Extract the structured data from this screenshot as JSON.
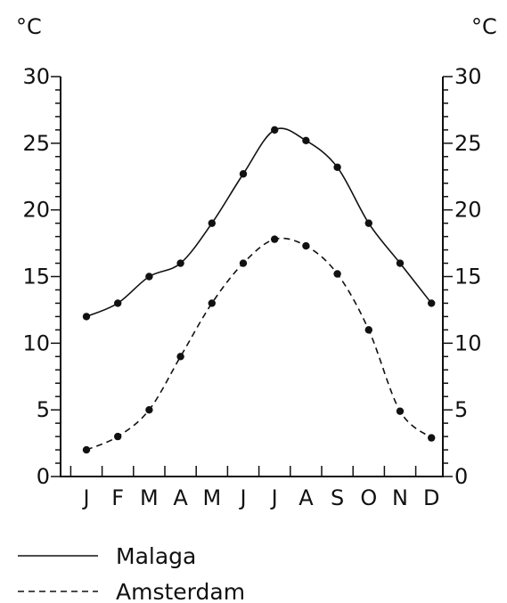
{
  "chart_data": {
    "type": "line",
    "title": "",
    "y_unit_left": "°C",
    "y_unit_right": "°C",
    "categories": [
      "J",
      "F",
      "M",
      "A",
      "M",
      "J",
      "J",
      "A",
      "S",
      "O",
      "N",
      "D"
    ],
    "ylim": [
      0,
      30
    ],
    "y_ticks": [
      "0",
      "5",
      "10",
      "15",
      "20",
      "25",
      "30"
    ],
    "dual_y_axis": true,
    "grid": false,
    "series": [
      {
        "name": "Malaga",
        "style": "solid",
        "values": [
          12,
          13,
          15,
          16,
          19,
          22.7,
          26,
          25.2,
          23.2,
          19,
          16,
          13
        ]
      },
      {
        "name": "Amsterdam",
        "style": "dashed",
        "values": [
          2,
          3,
          5,
          9,
          13,
          16,
          17.8,
          17.3,
          15.2,
          11,
          4.9,
          2.9
        ]
      }
    ],
    "legend_placement": "bottom-left"
  }
}
